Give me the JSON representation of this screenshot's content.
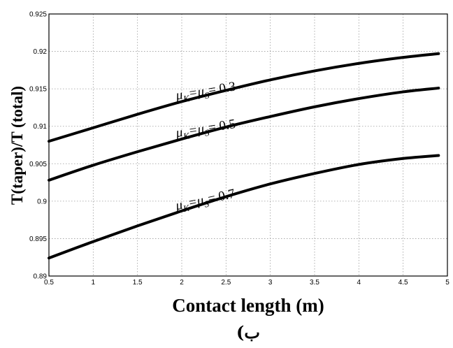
{
  "chart_data": {
    "type": "line",
    "title": "",
    "xlabel": "Contact length (m)",
    "ylabel": "T(taper)/T (total)",
    "sublabel": "(ب",
    "xlim": [
      0.5,
      5
    ],
    "ylim": [
      0.89,
      0.925
    ],
    "xticks": [
      "0.5",
      "1",
      "1.5",
      "2",
      "2.5",
      "3",
      "3.5",
      "4",
      "4.5",
      "5"
    ],
    "yticks": [
      "0.89",
      "0.895",
      "0.9",
      "0.905",
      "0.91",
      "0.915",
      "0.92",
      "0.925"
    ],
    "grid": true,
    "legend": "none",
    "x": [
      0.5,
      1.0,
      1.5,
      2.0,
      2.5,
      3.0,
      3.5,
      4.0,
      4.5,
      4.9
    ],
    "series": [
      {
        "label_parts": [
          "μ",
          "K",
          "=μ",
          "S",
          "= 0.3"
        ],
        "values": [
          0.908,
          0.9098,
          0.9116,
          0.9133,
          0.9148,
          0.9162,
          0.9174,
          0.9184,
          0.9192,
          0.9197
        ]
      },
      {
        "label_parts": [
          "μ",
          "K",
          "=μ",
          "S",
          "= 0.5"
        ],
        "values": [
          0.9028,
          0.9048,
          0.9066,
          0.9083,
          0.9099,
          0.9113,
          0.9126,
          0.9137,
          0.9146,
          0.9151
        ]
      },
      {
        "label_parts": [
          "μ",
          "K",
          "=μ",
          "S",
          "=  0.7"
        ],
        "values": [
          0.8924,
          0.8946,
          0.8967,
          0.8987,
          0.9006,
          0.9023,
          0.9037,
          0.9049,
          0.9057,
          0.9061
        ]
      }
    ]
  }
}
